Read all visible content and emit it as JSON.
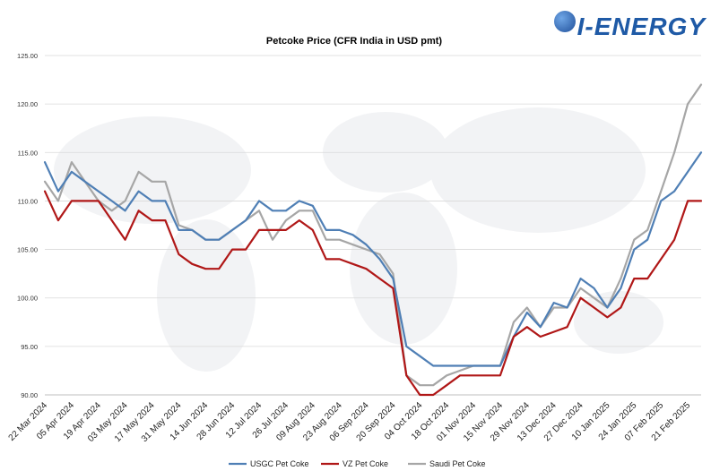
{
  "logo": {
    "text": "I-ENERGY"
  },
  "chart_data": {
    "type": "line",
    "title": "Petcoke Price (CFR India in USD pmt)",
    "xlabel": "",
    "ylabel": "",
    "ylim": [
      90,
      125
    ],
    "yticks": [
      90,
      95,
      100,
      105,
      110,
      115,
      120,
      125
    ],
    "ytick_labels": [
      "90.00",
      "95.00",
      "100.00",
      "105.00",
      "110.00",
      "115.00",
      "120.00",
      "125.00"
    ],
    "grid": "horizontal",
    "legend_position": "bottom",
    "x_tick_labels": [
      "22 Mar 2024",
      "05 Apr 2024",
      "19 Apr 2024",
      "03 May 2024",
      "17 May 2024",
      "31 May 2024",
      "14 Jun 2024",
      "28 Jun 2024",
      "12 Jul 2024",
      "26 Jul 2024",
      "09 Aug 2024",
      "23 Aug 2024",
      "06 Sep 2024",
      "20 Sep 2024",
      "04 Oct 2024",
      "18 Oct 2024",
      "01 Nov 2024",
      "15 Nov 2024",
      "29 Nov 2024",
      "13 Dec 2024",
      "27 Dec 2024",
      "10 Jan 2025",
      "24 Jan 2025",
      "07 Feb 2025",
      "21 Feb 2025"
    ],
    "x_tick_every": 2,
    "series": [
      {
        "name": "USGC Pet Coke",
        "color": "#4f7fb5",
        "values": [
          114,
          111,
          113,
          112,
          111,
          110,
          109,
          111,
          110,
          110,
          107,
          107,
          106,
          106,
          107,
          108,
          110,
          109,
          109,
          110,
          109.5,
          107,
          107,
          106.5,
          105.5,
          104,
          102,
          95,
          94,
          93,
          93,
          93,
          93,
          93,
          93,
          96,
          98.5,
          97,
          99.5,
          99,
          102,
          101,
          99,
          101,
          105,
          106,
          110,
          111,
          113,
          115
        ]
      },
      {
        "name": "VZ Pet Coke",
        "color": "#b01717",
        "values": [
          111,
          108,
          110,
          110,
          110,
          108,
          106,
          109,
          108,
          108,
          104.5,
          103.5,
          103,
          103,
          105,
          105,
          107,
          107,
          107,
          108,
          107,
          104,
          104,
          103.5,
          103,
          102,
          101,
          92,
          90,
          90,
          91,
          92,
          92,
          92,
          92,
          96,
          97,
          96,
          96.5,
          97,
          100,
          99,
          98,
          99,
          102,
          102,
          104,
          106,
          110,
          110
        ]
      },
      {
        "name": "Saudi Pet Coke",
        "color": "#a6a6a6",
        "values": [
          112,
          110,
          114,
          112,
          110,
          109,
          110,
          113,
          112,
          112,
          107.5,
          107,
          106,
          106,
          107,
          108,
          109,
          106,
          108,
          109,
          109,
          106,
          106,
          105.5,
          105,
          104.5,
          102.5,
          92,
          91,
          91,
          92,
          92.5,
          93,
          93,
          93,
          97.5,
          99,
          97,
          99,
          99,
          101,
          100,
          99,
          102,
          106,
          107,
          111,
          115,
          120,
          122
        ]
      }
    ]
  }
}
